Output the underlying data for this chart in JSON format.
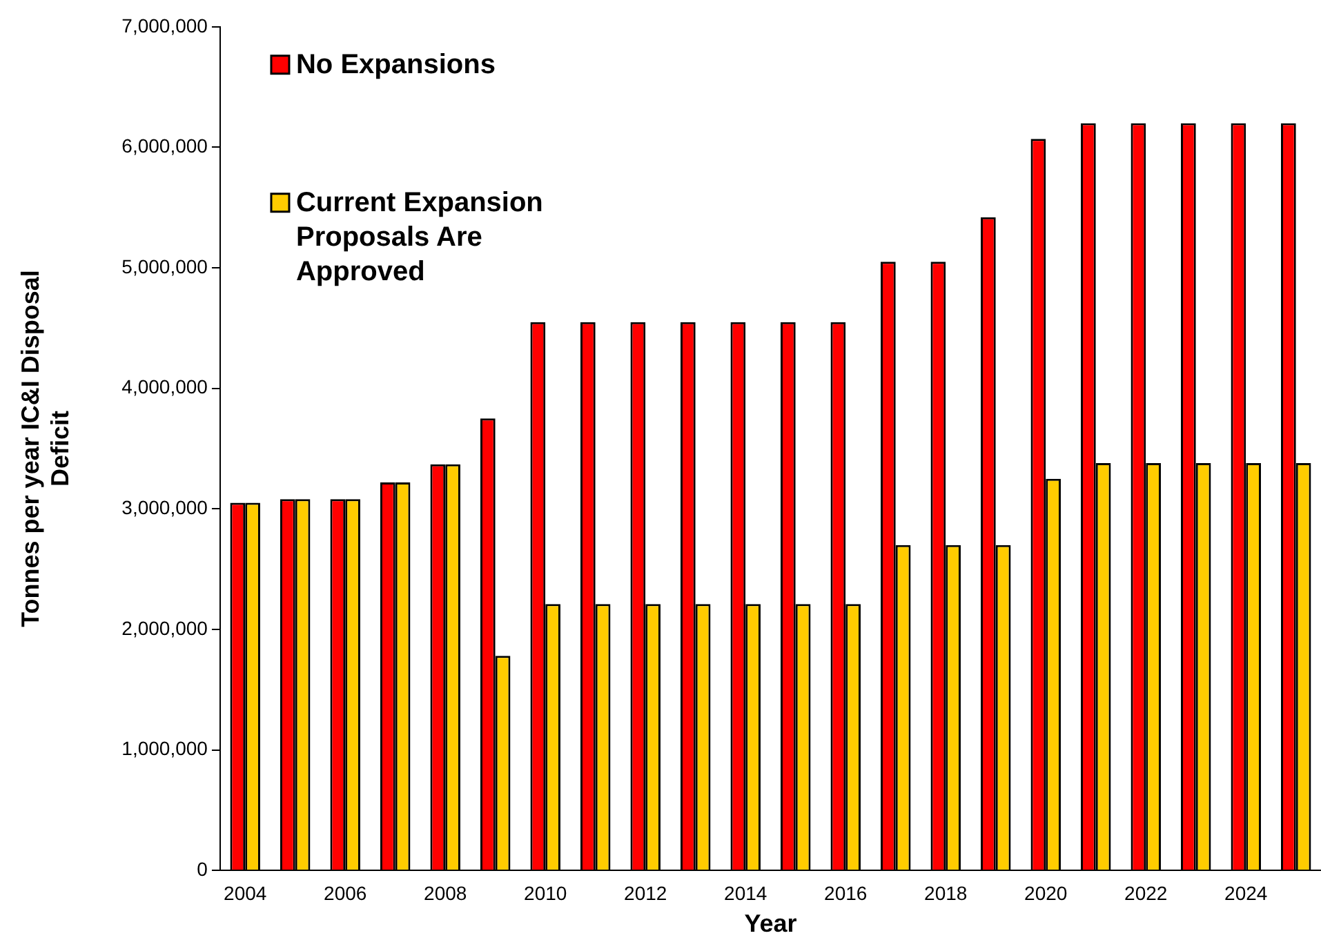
{
  "chart_data": {
    "type": "bar",
    "xlabel": "Year",
    "ylabel": "Tonnes per year IC&I Disposal Deficit",
    "categories": [
      "2004",
      null,
      "2006",
      null,
      "2008",
      null,
      "2010",
      null,
      "2012",
      null,
      "2014",
      null,
      "2016",
      null,
      "2018",
      null,
      "2020",
      null,
      "2022",
      null,
      "2024",
      null
    ],
    "series": [
      {
        "name": "No Expansions",
        "color": "#ff0000",
        "values": [
          3050000,
          3080000,
          3080000,
          3220000,
          3370000,
          3750000,
          4550000,
          4550000,
          4550000,
          4550000,
          4550000,
          4550000,
          4550000,
          5050000,
          5050000,
          5420000,
          6070000,
          6200000,
          6200000,
          6200000,
          6200000,
          6200000
        ]
      },
      {
        "name": "Current Expansion Proposals Are Approved",
        "color": "#ffcc00",
        "values": [
          3050000,
          3080000,
          3080000,
          3220000,
          3370000,
          1780000,
          2210000,
          2210000,
          2210000,
          2210000,
          2210000,
          2210000,
          2210000,
          2700000,
          2700000,
          2700000,
          3250000,
          3380000,
          3380000,
          3380000,
          3380000,
          3380000
        ]
      }
    ],
    "ylim": [
      0,
      7000000
    ],
    "yticks": [
      {
        "value": 0,
        "label": "0"
      },
      {
        "value": 1000000,
        "label": "1,000,000"
      },
      {
        "value": 2000000,
        "label": "2,000,000"
      },
      {
        "value": 3000000,
        "label": "3,000,000"
      },
      {
        "value": 4000000,
        "label": "4,000,000"
      },
      {
        "value": 5000000,
        "label": "5,000,000"
      },
      {
        "value": 6000000,
        "label": "6,000,000"
      },
      {
        "value": 7000000,
        "label": "7,000,000"
      }
    ],
    "grid": false,
    "legend": "top left"
  }
}
